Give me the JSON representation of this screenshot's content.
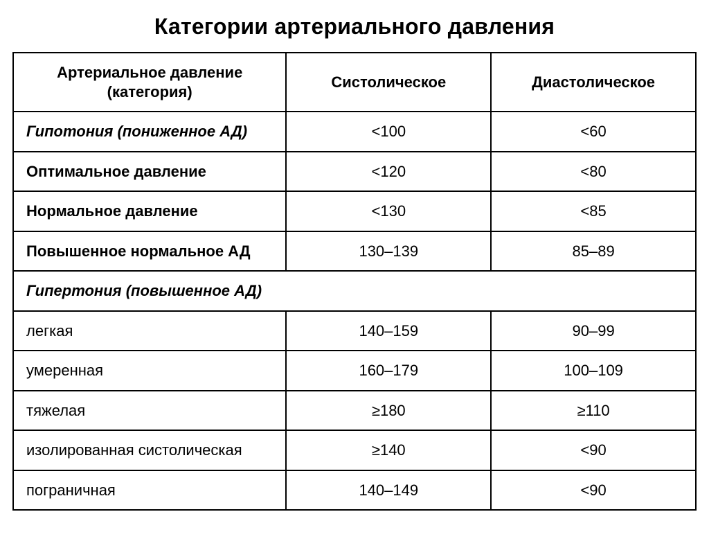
{
  "title": "Категории артериального давления",
  "table": {
    "type": "table",
    "background_color": "#ffffff",
    "border_color": "#000000",
    "text_color": "#000000",
    "header_fontsize": 22,
    "cell_fontsize": 22,
    "title_fontsize": 32,
    "column_widths_pct": [
      40,
      30,
      30
    ],
    "columns": [
      {
        "label": "Артериальное давление (категория)",
        "align": "center"
      },
      {
        "label": "Систолическое",
        "align": "center"
      },
      {
        "label": "Диастолическое",
        "align": "center"
      }
    ],
    "rows": [
      {
        "category": "Гипотония (пониженное АД)",
        "italic": true,
        "bold": true,
        "systolic": "<100",
        "diastolic": "<60"
      },
      {
        "category": "Оптимальное давление",
        "italic": false,
        "bold": true,
        "systolic": "<120",
        "diastolic": "<80"
      },
      {
        "category": "Нормальное давление",
        "italic": false,
        "bold": true,
        "systolic": "<130",
        "diastolic": "<85"
      },
      {
        "category": "Повышенное нормальное АД",
        "italic": false,
        "bold": true,
        "systolic": "130–139",
        "diastolic": "85–89"
      }
    ],
    "section_header": "Гипертония (повышенное АД)",
    "section_rows": [
      {
        "category": "легкая",
        "systolic": "140–159",
        "diastolic": "90–99"
      },
      {
        "category": "умеренная",
        "systolic": "160–179",
        "diastolic": "100–109"
      },
      {
        "category": "тяжелая",
        "systolic": "≥180",
        "diastolic": "≥110"
      },
      {
        "category": "изолированная систолическая",
        "systolic": "≥140",
        "diastolic": "<90"
      },
      {
        "category": "пограничная",
        "systolic": "140–149",
        "diastolic": "<90"
      }
    ]
  }
}
